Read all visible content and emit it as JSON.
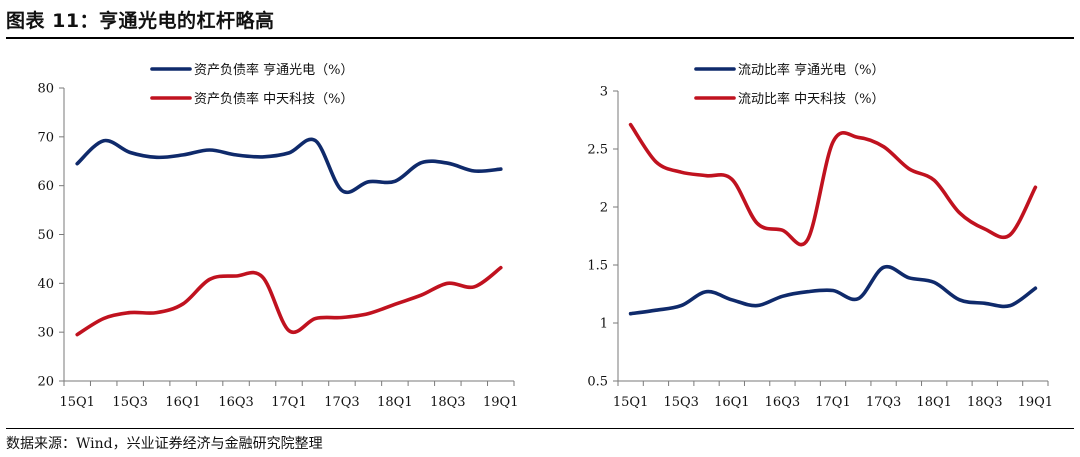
{
  "title": "图表 11：亨通光电的杠杆略高",
  "source": "数据来源：Wind，兴业证券经济与金融研究院整理",
  "colors": {
    "navy": "#0f2a6b",
    "red": "#c0121f"
  },
  "chart_data": [
    {
      "type": "line",
      "categories": [
        "15Q1",
        "15Q2",
        "15Q3",
        "15Q4",
        "16Q1",
        "16Q2",
        "16Q3",
        "16Q4",
        "17Q1",
        "17Q2",
        "17Q3",
        "17Q4",
        "18Q1",
        "18Q2",
        "18Q3",
        "18Q4",
        "19Q1"
      ],
      "tick_labels": [
        "15Q1",
        "15Q3",
        "16Q1",
        "16Q3",
        "17Q1",
        "17Q3",
        "18Q1",
        "18Q3",
        "19Q1"
      ],
      "ylim": [
        20,
        80
      ],
      "yticks": [
        20,
        30,
        40,
        50,
        60,
        70,
        80
      ],
      "ytick_labels": [
        "20",
        "30",
        "40",
        "50",
        "60",
        "70",
        "80"
      ],
      "series": [
        {
          "name": "资产负债率 亨通光电（%）",
          "color": "#0f2a6b",
          "values": [
            64.5,
            69.2,
            66.8,
            65.8,
            66.3,
            67.3,
            66.3,
            65.9,
            66.7,
            69.2,
            59.0,
            60.8,
            60.9,
            64.7,
            64.6,
            63.0,
            63.4
          ]
        },
        {
          "name": "资产负债率 中天科技（%）",
          "color": "#c0121f",
          "values": [
            29.5,
            32.8,
            34.0,
            34.0,
            35.8,
            40.8,
            41.5,
            41.3,
            30.3,
            32.8,
            33.0,
            33.8,
            35.7,
            37.6,
            40.0,
            39.3,
            43.2
          ]
        }
      ],
      "legend": "top-center",
      "grid": false
    },
    {
      "type": "line",
      "categories": [
        "15Q1",
        "15Q2",
        "15Q3",
        "15Q4",
        "16Q1",
        "16Q2",
        "16Q3",
        "16Q4",
        "17Q1",
        "17Q2",
        "17Q3",
        "17Q4",
        "18Q1",
        "18Q2",
        "18Q3",
        "18Q4",
        "19Q1"
      ],
      "tick_labels": [
        "15Q1",
        "15Q3",
        "16Q1",
        "16Q3",
        "17Q1",
        "17Q3",
        "18Q1",
        "18Q3",
        "19Q1"
      ],
      "ylim": [
        0.5,
        3
      ],
      "yticks": [
        0.5,
        1,
        1.5,
        2,
        2.5,
        3
      ],
      "ytick_labels": [
        "0.5",
        "1",
        "1.5",
        "2",
        "2.5",
        "3"
      ],
      "series": [
        {
          "name": "流动比率 亨通光电（%）",
          "color": "#0f2a6b",
          "values": [
            1.08,
            1.11,
            1.15,
            1.27,
            1.2,
            1.15,
            1.23,
            1.27,
            1.28,
            1.21,
            1.48,
            1.39,
            1.35,
            1.2,
            1.17,
            1.15,
            1.3
          ]
        },
        {
          "name": "流动比率 中天科技（%）",
          "color": "#c0121f",
          "values": [
            2.71,
            2.39,
            2.3,
            2.27,
            2.24,
            1.86,
            1.8,
            1.72,
            2.56,
            2.6,
            2.52,
            2.33,
            2.23,
            1.95,
            1.81,
            1.76,
            2.17
          ]
        }
      ],
      "legend": "top-center",
      "grid": false
    }
  ]
}
